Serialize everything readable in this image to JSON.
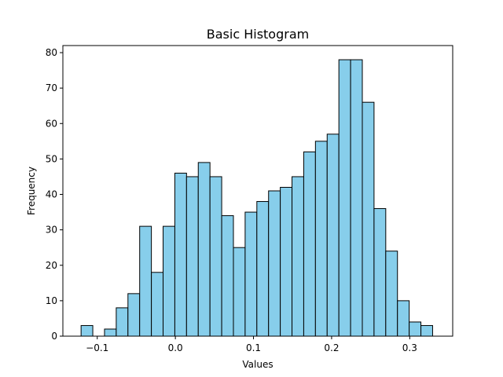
{
  "chart_data": {
    "type": "bar",
    "title": "Basic Histogram",
    "xlabel": "Values",
    "ylabel": "Frequency",
    "xlim": [
      -0.144,
      0.355
    ],
    "ylim": [
      0,
      82
    ],
    "bin_edges": [
      -0.1207,
      -0.1057,
      -0.0907,
      -0.0757,
      -0.0607,
      -0.0457,
      -0.0307,
      -0.0157,
      -0.0007,
      0.0143,
      0.0293,
      0.0443,
      0.0593,
      0.0743,
      0.0893,
      0.1043,
      0.1193,
      0.1343,
      0.1493,
      0.1643,
      0.1793,
      0.1943,
      0.2093,
      0.2243,
      0.2393,
      0.2543,
      0.2693,
      0.2843,
      0.2993,
      0.3143,
      0.3293
    ],
    "values": [
      3,
      0,
      2,
      8,
      12,
      31,
      18,
      31,
      46,
      45,
      49,
      45,
      34,
      25,
      35,
      38,
      41,
      42,
      45,
      52,
      55,
      57,
      78,
      78,
      66,
      36,
      24,
      10,
      4,
      3
    ],
    "bar_color": "#87ceeb",
    "edge_color": "#000000",
    "x_ticks": [
      -0.1,
      0.0,
      0.1,
      0.2,
      0.3
    ],
    "x_tick_labels": [
      "−0.1",
      "0.0",
      "0.1",
      "0.2",
      "0.3"
    ],
    "y_ticks": [
      0,
      10,
      20,
      30,
      40,
      50,
      60,
      70,
      80
    ],
    "y_tick_labels": [
      "0",
      "10",
      "20",
      "30",
      "40",
      "50",
      "60",
      "70",
      "80"
    ],
    "grid": false,
    "legend": "none"
  }
}
